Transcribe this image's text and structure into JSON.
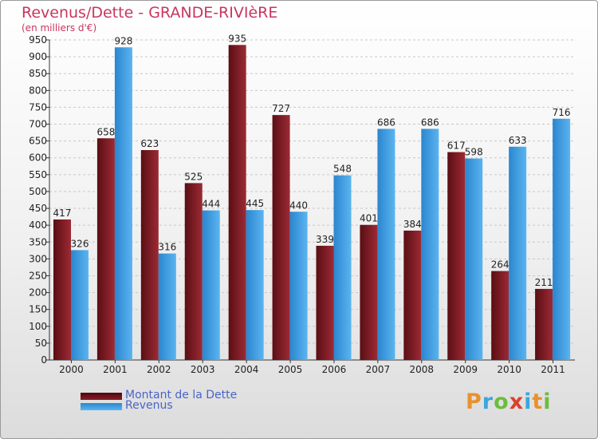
{
  "title": "Revenus/Dette - GRANDE-RIVIèRE",
  "subtitle": "(en milliers d'€)",
  "logo": {
    "text": "Proxiti",
    "letter_colors": [
      "#e8912f",
      "#3da6db",
      "#6bbd3e",
      "#d8422e",
      "#3da6db",
      "#e8912f",
      "#6bbd3e"
    ]
  },
  "colors": {
    "dette": "#8b1d28",
    "revenus": "#3a9de4",
    "grid": "#c8c8c8",
    "axis": "#333333"
  },
  "chart_data": {
    "type": "bar",
    "categories": [
      "2000",
      "2001",
      "2002",
      "2003",
      "2004",
      "2005",
      "2006",
      "2007",
      "2008",
      "2009",
      "2010",
      "2011"
    ],
    "series": [
      {
        "name": "Montant de la Dette",
        "values": [
          417,
          658,
          623,
          525,
          935,
          727,
          339,
          401,
          384,
          617,
          264,
          211
        ]
      },
      {
        "name": "Revenus",
        "values": [
          326,
          928,
          316,
          444,
          445,
          440,
          548,
          686,
          686,
          598,
          633,
          716
        ]
      }
    ],
    "title": "Revenus/Dette - GRANDE-RIVIèRE",
    "subtitle": "(en milliers d'€)",
    "ylim": [
      0,
      950
    ],
    "ytick_step": 50,
    "grid": true,
    "legend_position": "bottom-left",
    "show_value_labels": true
  }
}
